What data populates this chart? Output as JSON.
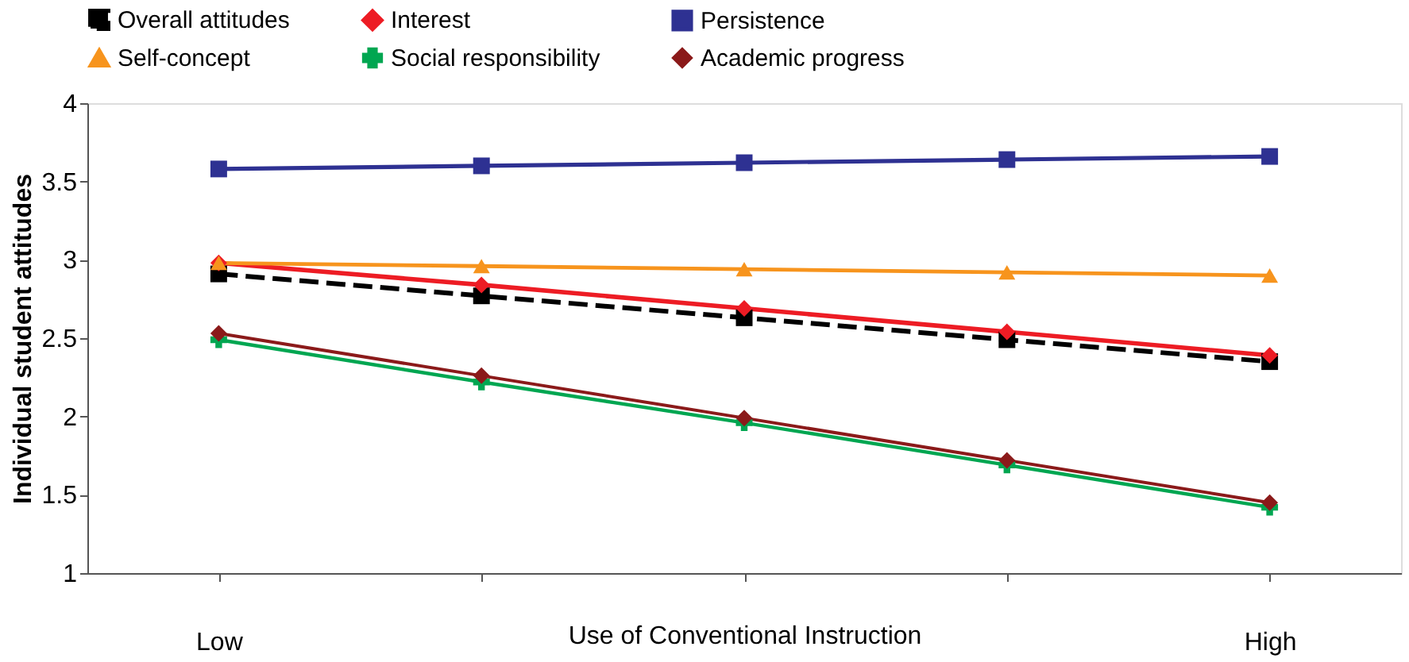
{
  "chart_data": {
    "type": "line",
    "xlabel": "Use of Conventional Instruction",
    "ylabel": "Individual student attitudes",
    "categories": [
      "Low",
      null,
      null,
      null,
      "High"
    ],
    "ylim": [
      1,
      4
    ],
    "yticks": [
      1,
      1.5,
      2,
      2.5,
      3,
      3.5,
      4
    ],
    "grid": false,
    "legend": "top",
    "series": [
      {
        "name": "Overall attitudes",
        "color": "#000000",
        "marker": "square",
        "line_style": "dashed",
        "values": [
          2.91,
          2.77,
          2.63,
          2.49,
          2.35
        ]
      },
      {
        "name": "Interest",
        "color": "#ed1c24",
        "marker": "diamond",
        "line_style": "solid",
        "values": [
          2.98,
          2.84,
          2.69,
          2.54,
          2.39
        ]
      },
      {
        "name": "Persistence",
        "color": "#2e3192",
        "marker": "square",
        "line_style": "solid",
        "values": [
          3.58,
          3.6,
          3.62,
          3.64,
          3.66
        ]
      },
      {
        "name": "Self-concept",
        "color": "#f7941d",
        "marker": "triangle",
        "line_style": "solid",
        "values": [
          2.98,
          2.96,
          2.94,
          2.92,
          2.9
        ]
      },
      {
        "name": "Social responsibility",
        "color": "#00a651",
        "marker": "cross",
        "line_style": "solid",
        "values": [
          2.49,
          2.22,
          1.96,
          1.69,
          1.42
        ]
      },
      {
        "name": "Academic progress",
        "color": "#8b1a1a",
        "marker": "diamond",
        "line_style": "solid",
        "values": [
          2.53,
          2.26,
          1.99,
          1.72,
          1.45
        ]
      }
    ]
  }
}
